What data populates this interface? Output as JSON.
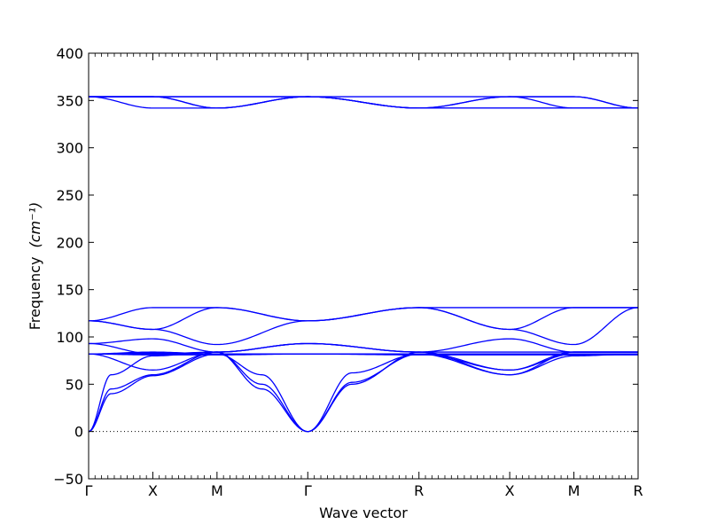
{
  "chart_data": {
    "type": "line",
    "title": "",
    "xlabel": "Wave vector",
    "ylabel": "Frequency",
    "ylabel_unit": "(cm⁻¹)",
    "ylim": [
      -50,
      400
    ],
    "yticks": [
      -50,
      0,
      50,
      100,
      150,
      200,
      250,
      300,
      350,
      400
    ],
    "grid": false,
    "legend": "none",
    "line_color": "#0000ff",
    "zero_line": {
      "y": 0,
      "style": "dotted",
      "color": "#000000"
    },
    "x_points": [
      {
        "label": "Γ",
        "x": 0.0
      },
      {
        "label": "X",
        "x": 1.0
      },
      {
        "label": "M",
        "x": 2.0
      },
      {
        "label": "Γ",
        "x": 3.414
      },
      {
        "label": "R",
        "x": 5.146
      },
      {
        "label": "X",
        "x": 6.56
      },
      {
        "label": "M",
        "x": 7.56
      },
      {
        "label": "R",
        "x": 8.56
      }
    ],
    "xlim": [
      0.0,
      8.56
    ],
    "series": [
      {
        "x": [
          0.0,
          1.0,
          2.0,
          3.414,
          5.146,
          6.56,
          7.56,
          8.56
        ],
        "y": [
          354,
          354,
          342,
          354,
          342,
          354,
          354,
          342
        ]
      },
      {
        "x": [
          0.0,
          1.0,
          2.0,
          3.414,
          5.146,
          6.56,
          7.56,
          8.56
        ],
        "y": [
          354,
          354,
          342,
          354,
          342,
          342,
          342,
          342
        ]
      },
      {
        "x": [
          0.0,
          1.0,
          2.0,
          3.414,
          5.146,
          6.56,
          7.56,
          8.56
        ],
        "y": [
          354,
          342,
          342,
          354,
          342,
          354,
          342,
          342
        ]
      },
      {
        "x": [
          0.0,
          1.0,
          2.0,
          3.414,
          5.146,
          6.56,
          7.56,
          8.56
        ],
        "y": [
          354,
          354,
          354,
          354,
          342,
          342,
          342,
          342
        ]
      },
      {
        "x": [
          0.0,
          1.0,
          2.0,
          3.414,
          5.146,
          6.56,
          7.56,
          8.56
        ],
        "y": [
          354,
          354,
          354,
          354,
          354,
          354,
          354,
          342
        ]
      },
      {
        "x": [
          0.0,
          1.0,
          2.0,
          3.414,
          5.146,
          6.56,
          7.56,
          8.56
        ],
        "y": [
          117,
          131,
          131,
          117,
          131,
          131,
          131,
          131
        ]
      },
      {
        "x": [
          0.0,
          1.0,
          2.0,
          3.414,
          5.146,
          6.56,
          7.56,
          8.56
        ],
        "y": [
          117,
          108,
          131,
          117,
          131,
          108,
          131,
          131
        ]
      },
      {
        "x": [
          0.0,
          1.0,
          2.0,
          3.414,
          5.146,
          6.56,
          7.56,
          8.56
        ],
        "y": [
          117,
          108,
          92,
          117,
          131,
          108,
          92,
          131
        ]
      },
      {
        "x": [
          0.0,
          1.0,
          2.0,
          3.414,
          5.146,
          6.56,
          7.56,
          8.56
        ],
        "y": [
          93,
          98,
          84,
          93,
          84,
          98,
          84,
          84
        ]
      },
      {
        "x": [
          0.0,
          1.0,
          2.0,
          3.414,
          5.146,
          6.56,
          7.56,
          8.56
        ],
        "y": [
          93,
          82,
          84,
          93,
          84,
          84,
          84,
          84
        ]
      },
      {
        "x": [
          0.0,
          1.0,
          2.0,
          3.414,
          5.146,
          6.56,
          7.56,
          8.56
        ],
        "y": [
          82,
          65,
          84,
          93,
          84,
          65,
          84,
          84
        ]
      },
      {
        "x": [
          0.0,
          1.0,
          2.0,
          3.414,
          5.146,
          6.56,
          7.56,
          8.56
        ],
        "y": [
          82,
          82,
          82,
          82,
          82,
          82,
          82,
          82
        ]
      },
      {
        "x": [
          0.0,
          1.0,
          2.0,
          3.414,
          5.146,
          6.56,
          7.56,
          8.56
        ],
        "y": [
          82,
          83,
          82,
          82,
          82,
          82,
          82,
          82
        ]
      },
      {
        "x": [
          0.0,
          1.0,
          2.0,
          3.414,
          5.146,
          6.56,
          7.56,
          8.56
        ],
        "y": [
          82,
          84,
          82,
          82,
          82,
          82,
          82,
          82
        ]
      },
      {
        "x": [
          0.0,
          1.0,
          2.0,
          3.414,
          5.146,
          6.56,
          7.56,
          8.56
        ],
        "y": [
          82,
          81,
          81,
          82,
          81,
          81,
          81,
          81
        ]
      },
      {
        "x": [
          0.0,
          0.35,
          1.0,
          2.0,
          2.7,
          3.414,
          4.1,
          5.146,
          6.56,
          7.56,
          8.56
        ],
        "y": [
          0,
          60,
          80,
          84,
          45,
          0,
          50,
          84,
          60,
          84,
          84
        ]
      },
      {
        "x": [
          0.0,
          0.35,
          1.0,
          2.0,
          2.7,
          3.414,
          4.1,
          5.146,
          6.56,
          7.56,
          8.56
        ],
        "y": [
          0,
          45,
          60,
          84,
          50,
          0,
          52,
          82,
          60,
          80,
          82
        ]
      },
      {
        "x": [
          0.0,
          0.35,
          1.0,
          2.0,
          2.7,
          3.414,
          4.1,
          5.146,
          6.56,
          7.56,
          8.56
        ],
        "y": [
          0,
          40,
          59,
          82,
          60,
          0,
          62,
          82,
          65,
          82,
          82
        ]
      }
    ]
  }
}
